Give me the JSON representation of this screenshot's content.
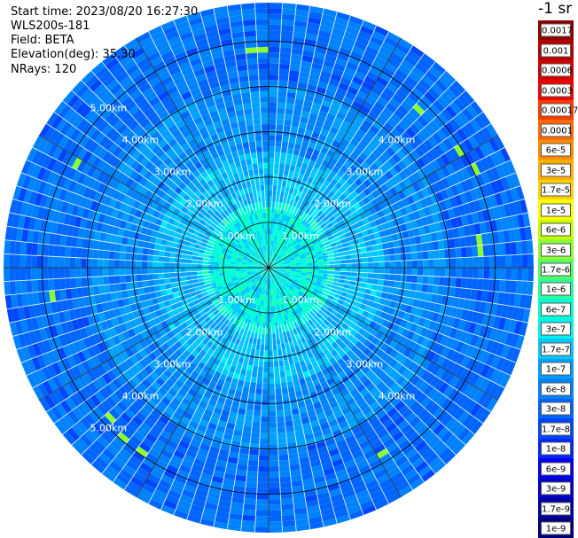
{
  "header": {
    "start_time": "Start time: 2023/08/20 16:27:30",
    "instrument": "WLS200s-181",
    "field": "Field: BETA",
    "elevation": "Elevation(deg): 35.30",
    "nrays": "NRays: 120"
  },
  "colorbar": {
    "title": "-1 sr",
    "levels": [
      {
        "label": "0.0017",
        "color": "#8b0000"
      },
      {
        "label": "0.001",
        "color": "#b30000"
      },
      {
        "label": "0.0006",
        "color": "#d40000"
      },
      {
        "label": "0.0003",
        "color": "#f00000"
      },
      {
        "label": "0.00017",
        "color": "#ff3b00"
      },
      {
        "label": "0.0001",
        "color": "#ff6a00"
      },
      {
        "label": "6e-5",
        "color": "#ff8c00"
      },
      {
        "label": "3e-5",
        "color": "#ffae00"
      },
      {
        "label": "1.7e-5",
        "color": "#ffd200"
      },
      {
        "label": "1e-5",
        "color": "#ffff00"
      },
      {
        "label": "6e-6",
        "color": "#c8ff00"
      },
      {
        "label": "3e-6",
        "color": "#8cff32"
      },
      {
        "label": "1.7e-6",
        "color": "#50ff64"
      },
      {
        "label": "1e-6",
        "color": "#28ffa0"
      },
      {
        "label": "6e-7",
        "color": "#00ffd2"
      },
      {
        "label": "3e-7",
        "color": "#00f0f0"
      },
      {
        "label": "1.7e-7",
        "color": "#00c8ff"
      },
      {
        "label": "1e-7",
        "color": "#00a0ff"
      },
      {
        "label": "6e-8",
        "color": "#0082ff"
      },
      {
        "label": "3e-8",
        "color": "#0064ff"
      },
      {
        "label": "1.7e-8",
        "color": "#0046ff"
      },
      {
        "label": "1e-8",
        "color": "#0028ff"
      },
      {
        "label": "6e-9",
        "color": "#0000f0"
      },
      {
        "label": "3e-9",
        "color": "#0000c8"
      },
      {
        "label": "1.7e-9",
        "color": "#0000a0"
      },
      {
        "label": "1e-9",
        "color": "#000078"
      }
    ]
  },
  "chart_data": {
    "type": "heatmap",
    "projection": "polar-ppi",
    "field": "BETA",
    "n_rays": 120,
    "max_range_km": 5.85,
    "ring_labels": [
      "1.00km",
      "2.00km",
      "3.00km",
      "4.00km",
      "5.00km"
    ],
    "ring_values_km": [
      1,
      2,
      3,
      4,
      5
    ],
    "azimuth_spokes_deg": [
      0,
      30,
      60,
      90,
      120,
      150,
      180,
      210,
      240,
      270,
      300,
      330
    ],
    "value_bands": [
      {
        "range_km": [
          0.0,
          1.5
        ],
        "dominant": "6e-7",
        "secondary": "1.7e-7"
      },
      {
        "range_km": [
          1.5,
          2.6
        ],
        "dominant": "1.7e-7",
        "secondary": "1e-7"
      },
      {
        "range_km": [
          2.6,
          4.0
        ],
        "dominant": "6e-8",
        "secondary": "1e-7"
      },
      {
        "range_km": [
          4.0,
          5.85
        ],
        "dominant": "3e-8",
        "secondary": "6e-8"
      }
    ],
    "grid": true,
    "legend": "colorbar-right"
  }
}
